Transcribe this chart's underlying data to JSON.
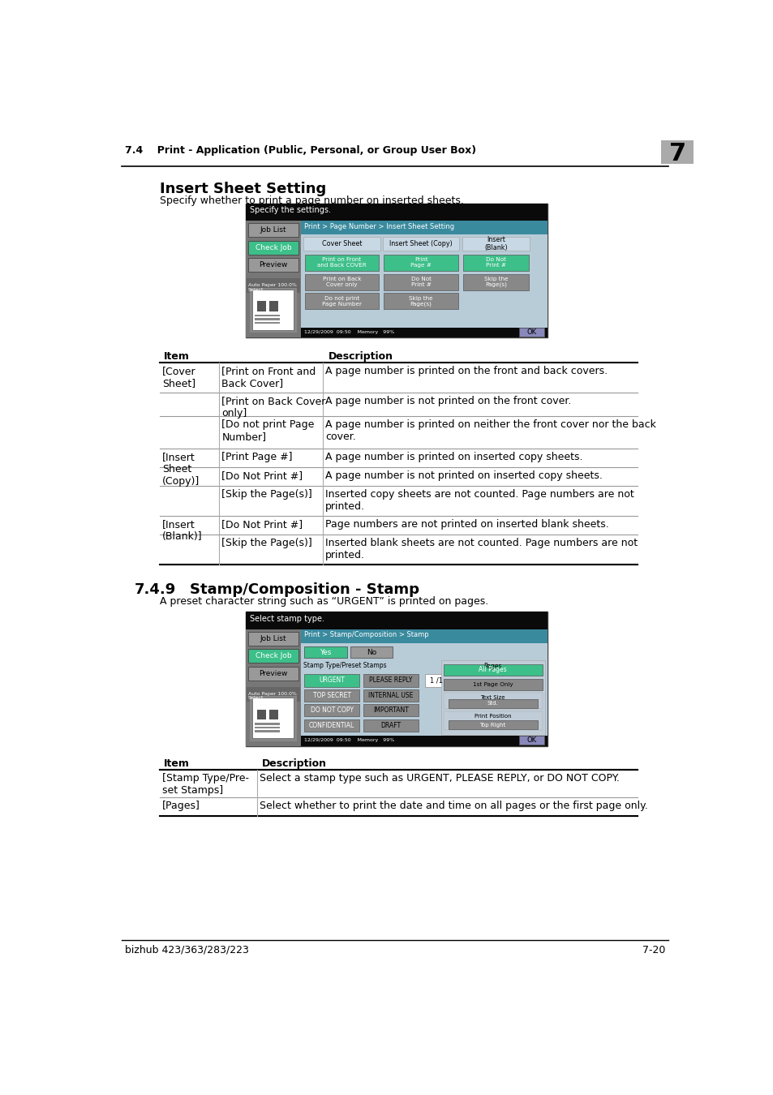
{
  "page_bg": "#ffffff",
  "header_text": "7.4    Print - Application (Public, Personal, or Group User Box)",
  "header_chapter": "7",
  "section1_title": "Insert Sheet Setting",
  "section1_desc": "Specify whether to print a page number on inserted sheets.",
  "section2_num": "7.4.9",
  "section2_title": "Stamp/Composition - Stamp",
  "section2_desc": "A preset character string such as “URGENT” is printed on pages.",
  "footer_left": "bizhub 423/363/283/223",
  "footer_right": "7-20",
  "table1_rows": [
    [
      "[Cover\nSheet]",
      "[Print on Front and\nBack Cover]",
      "A page number is printed on the front and back covers."
    ],
    [
      "",
      "[Print on Back Cover\nonly]",
      "A page number is not printed on the front cover."
    ],
    [
      "",
      "[Do not print Page\nNumber]",
      "A page number is printed on neither the front cover nor the back\ncover."
    ],
    [
      "[Insert\nSheet\n(Copy)]",
      "[Print Page #]",
      "A page number is printed on inserted copy sheets."
    ],
    [
      "",
      "[Do Not Print #]",
      "A page number is not printed on inserted copy sheets."
    ],
    [
      "",
      "[Skip the Page(s)]",
      "Inserted copy sheets are not counted. Page numbers are not\nprinted."
    ],
    [
      "[Insert\n(Blank)]",
      "[Do Not Print #]",
      "Page numbers are not printed on inserted blank sheets."
    ],
    [
      "",
      "[Skip the Page(s)]",
      "Inserted blank sheets are not counted. Page numbers are not\nprinted."
    ]
  ],
  "table2_rows": [
    [
      "[Stamp Type/Pre-\nset Stamps]",
      "Select a stamp type such as URGENT, PLEASE REPLY, or DO NOT COPY."
    ],
    [
      "[Pages]",
      "Select whether to print the date and time on all pages or the first page only."
    ]
  ],
  "screen1_title_bar": "Specify the settings.",
  "screen1_breadcrumb": "Print > Page Number > Insert Sheet Setting",
  "screen1_cols": [
    "Cover Sheet",
    "Insert Sheet (Copy)",
    "Insert\n(Blank)"
  ],
  "screen1_btns_col1": [
    "Print on Front\nand Back COVER",
    "Print on Back\nCover only",
    "Do not print\nPage Number"
  ],
  "screen1_btns_col2": [
    "Print\nPage #",
    "Do Not\nPrint #",
    "Skip the\nPage(s)"
  ],
  "screen1_btns_col3": [
    "Do Not\nPrint #",
    "Skip the\nPage(s)",
    ""
  ],
  "screen2_title_bar": "Select stamp type.",
  "screen2_breadcrumb": "Print > Stamp/Composition > Stamp",
  "screen2_btns_left": [
    "URGENT",
    "TOP SECRET",
    "DO NOT COPY",
    "CONFIDENTIAL"
  ],
  "screen2_btns_right": [
    "PLEASE REPLY",
    "INTERNAL USE",
    "IMPORTANT",
    "DRAFT"
  ],
  "green_btn": "#3dbf8a",
  "gray_btn": "#999999",
  "screen_bg": "#b8ccd8",
  "teal_header": "#3a8a9e",
  "screen_dark": "#111111",
  "screen_sidebar": "#888888",
  "ok_btn": "#8888bb"
}
